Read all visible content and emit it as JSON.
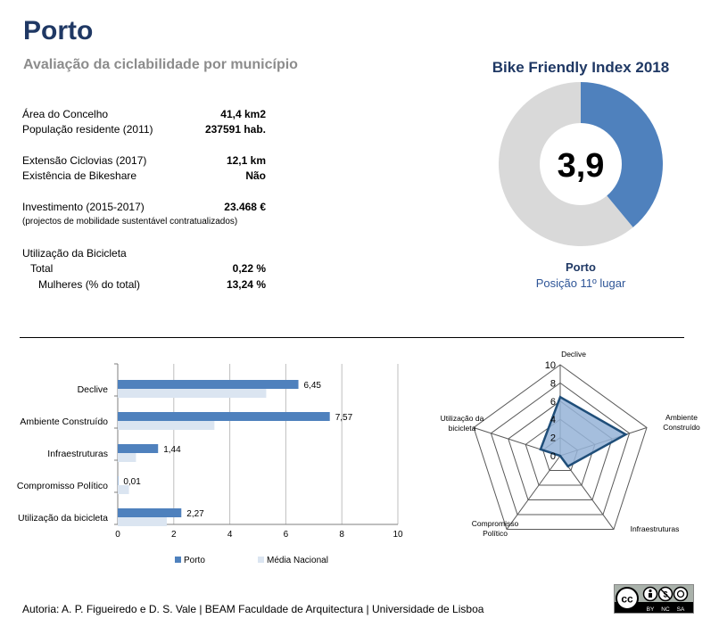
{
  "header": {
    "title": "Porto",
    "subtitle": "Avaliação da ciclabilidade por município"
  },
  "stats": [
    {
      "label": "Área do Concelho",
      "value": "41,4 km2"
    },
    {
      "label": "População residente (2011)",
      "value": "237591 hab."
    },
    {
      "label": "Extensão Ciclovias (2017)",
      "value": "12,1 km"
    },
    {
      "label": "Existência de Bikeshare",
      "value": "Não"
    },
    {
      "label": "Investimento (2015-2017)",
      "value": "23.468 €"
    },
    {
      "label": "(projectos de mobilidade sustentável contratualizados)",
      "value": ""
    },
    {
      "label": "Utilização da Bicicleta",
      "value": ""
    },
    {
      "label": "Total",
      "value": "0,22 %"
    },
    {
      "label": "Mulheres (% do total)",
      "value": "13,24 %"
    }
  ],
  "index": {
    "title": "Bike Friendly Index 2018",
    "score_label": "3,9",
    "score": 3.9,
    "max": 10,
    "city": "Porto",
    "rank": "Posição 11º lugar",
    "colors": {
      "filled": "#4f81bd",
      "empty": "#d9d9d9"
    }
  },
  "chart_data": [
    {
      "type": "bar",
      "orientation": "horizontal",
      "categories": [
        "Declive",
        "Ambiente Construído",
        "Infraestruturas",
        "Compromisso Político",
        "Utilização da bicicleta"
      ],
      "series": [
        {
          "name": "Porto",
          "values": [
            6.45,
            7.57,
            1.44,
            0.01,
            2.27
          ],
          "labels": [
            "6,45",
            "7,57",
            "1,44",
            "0,01",
            "2,27"
          ],
          "color": "#4f81bd"
        },
        {
          "name": "Média Nacional",
          "values": [
            5.3,
            3.45,
            0.65,
            0.4,
            1.75
          ],
          "color": "#dbe5f1"
        }
      ],
      "xlim": [
        0,
        10
      ],
      "xticks": [
        0,
        2,
        4,
        6,
        8,
        10
      ],
      "grid": true,
      "legend": "bottom"
    },
    {
      "type": "radar",
      "axes": [
        "Declive",
        "Ambiente Construído",
        "Infraestruturas",
        "Compromisso Político",
        "Utilização da bicicleta"
      ],
      "axis_labels": [
        [
          "Declive"
        ],
        [
          "Ambiente",
          "Construído"
        ],
        [
          "Infraestruturas"
        ],
        [
          "Compromisso",
          "Político"
        ],
        [
          "Utilização da",
          "bicicleta"
        ]
      ],
      "values": [
        6.45,
        7.57,
        1.44,
        0.01,
        2.27
      ],
      "range": [
        0,
        10
      ],
      "ticks": [
        0,
        2,
        4,
        6,
        8,
        10
      ],
      "color": "#1f4e79",
      "fill": "#95b3d7"
    }
  ],
  "footer": {
    "credits": "Autoria: A. P. Figueiredo e D. S. Vale | BEAM Faculdade de Arquitectura | Universidade de Lisboa",
    "license": [
      "BY",
      "NC",
      "SA"
    ]
  }
}
